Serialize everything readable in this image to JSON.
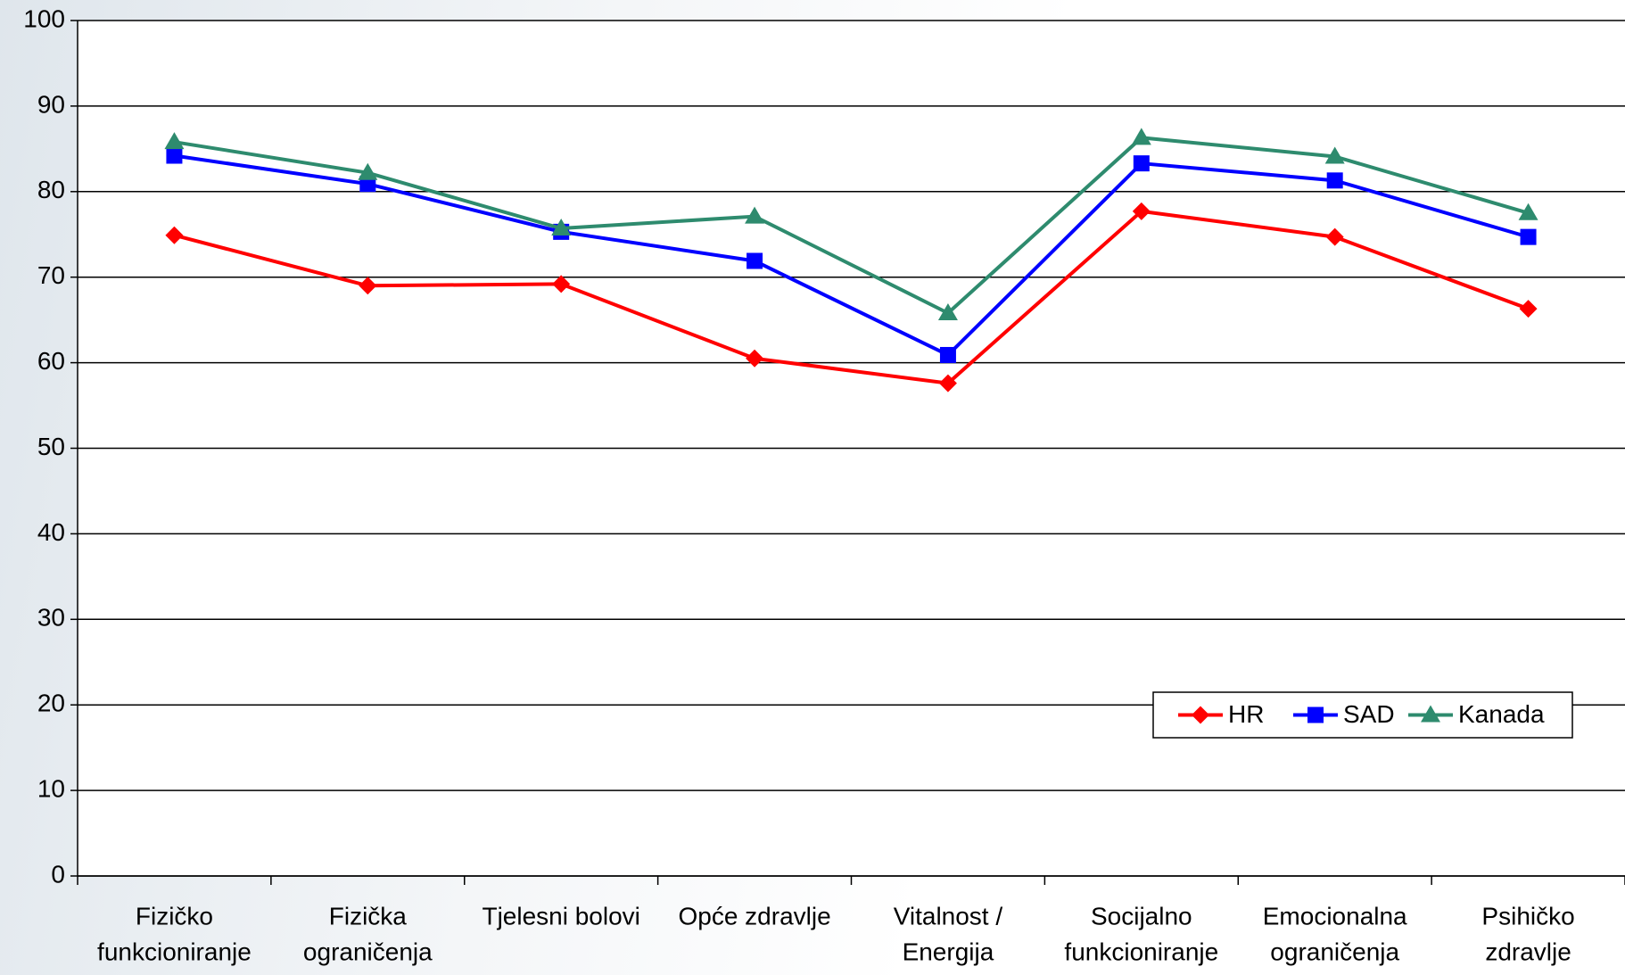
{
  "chart_data": {
    "type": "line",
    "categories": [
      [
        "Fizičko",
        "funkcioniranje"
      ],
      [
        "Fizička",
        "ograničenja"
      ],
      [
        "Tjelesni bolovi"
      ],
      [
        "Opće zdravlje"
      ],
      [
        "Vitalnost /",
        "Energija"
      ],
      [
        "Socijalno",
        "funkcioniranje"
      ],
      [
        "Emocionalna",
        "ograničenja"
      ],
      [
        "Psihičko",
        "zdravlje"
      ]
    ],
    "series": [
      {
        "name": "HR",
        "color": "#ff0000",
        "marker": "diamond",
        "values": [
          74.9,
          69,
          69.2,
          60.5,
          57.6,
          77.7,
          74.7,
          66.3
        ]
      },
      {
        "name": "SAD",
        "color": "#0000ff",
        "marker": "square",
        "values": [
          84.2,
          80.9,
          75.3,
          71.9,
          60.9,
          83.3,
          81.3,
          74.7
        ]
      },
      {
        "name": "Kanada",
        "color": "#2e8b6e",
        "marker": "triangle",
        "values": [
          85.8,
          82.2,
          75.7,
          77.1,
          65.8,
          86.3,
          84.1,
          77.5
        ]
      }
    ],
    "ylim": [
      0,
      100
    ],
    "yticks": [
      0,
      10,
      20,
      30,
      40,
      50,
      60,
      70,
      80,
      90,
      100
    ],
    "grid": true,
    "legend": "lower right"
  }
}
